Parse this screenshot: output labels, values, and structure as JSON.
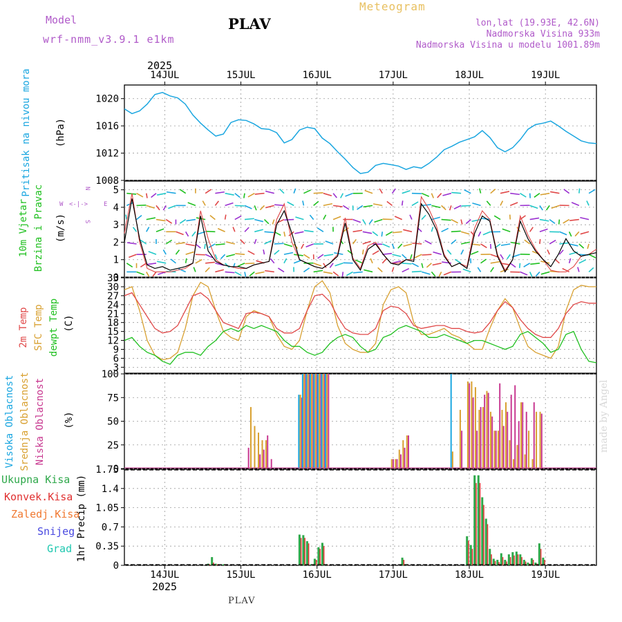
{
  "header": {
    "model_label": "Model",
    "model_name": "wrf-nmm_v3.9.1 e1km",
    "station": "PLAV",
    "meteogram": "Meteogram",
    "lonlat": "lon,lat (19.93E, 42.6N)",
    "alt": "Nadmorska Visina 933m",
    "alt_model": "Nadmorska Visina u modelu 1001.89m"
  },
  "footer": {
    "station": "PLAV",
    "credit": "made by Angel"
  },
  "colors": {
    "pressure": "#1aa6e0",
    "temp": "#e04848",
    "sfc": "#d8a030",
    "dew": "#20c020",
    "high": "#1aa6e0",
    "mid": "#d8a030",
    "low": "#c83890",
    "rain": "#2ea84a",
    "conv": "#e03030"
  },
  "chart_data": [
    {
      "type": "line",
      "panel": "pressure",
      "ylabel_1": "Pritisak na nivou mora",
      "ylabel_2": "(hPa)",
      "ylim": [
        1008,
        1022
      ],
      "yticks": [
        "1008",
        "1012",
        "1016",
        "1020"
      ],
      "top_year": "2025",
      "top_days": [
        "14JUL",
        "15JUL",
        "16JUL",
        "17JUL",
        "18JUL",
        "19JUL"
      ],
      "x": [
        0,
        0.1,
        0.2,
        0.3,
        0.4,
        0.5,
        0.6,
        0.7,
        0.8,
        0.9,
        1.0,
        1.1,
        1.2,
        1.3,
        1.4,
        1.5,
        1.6,
        1.7,
        1.8,
        1.9,
        2.0,
        2.1,
        2.2,
        2.3,
        2.4,
        2.5,
        2.6,
        2.7,
        2.8,
        2.9,
        3.0,
        3.1,
        3.2,
        3.3,
        3.4,
        3.5,
        3.6,
        3.7,
        3.8,
        3.9,
        4.0,
        4.1,
        4.2,
        4.3,
        4.4,
        4.5,
        4.6,
        4.7,
        4.8,
        4.9,
        5.0,
        5.1,
        5.2,
        5.3,
        5.4,
        5.5,
        5.6,
        5.7,
        5.8,
        5.9,
        6.0,
        6.1,
        6.2
      ],
      "values": [
        1018.5,
        1017.8,
        1018.2,
        1019.2,
        1020.6,
        1020.9,
        1020.4,
        1020.1,
        1019.2,
        1017.6,
        1016.4,
        1015.4,
        1014.5,
        1014.8,
        1016.5,
        1016.9,
        1016.8,
        1016.3,
        1015.6,
        1015.5,
        1015.0,
        1013.5,
        1014.0,
        1015.4,
        1015.8,
        1015.6,
        1014.2,
        1013.4,
        1012.2,
        1011.1,
        1009.9,
        1009.0,
        1009.2,
        1010.2,
        1010.5,
        1010.3,
        1010.1,
        1009.6,
        1010.0,
        1009.8,
        1010.5,
        1011.4,
        1012.5,
        1013.0,
        1013.6,
        1014.0,
        1014.4,
        1015.3,
        1014.3,
        1012.8,
        1012.2,
        1012.8,
        1014.0,
        1015.5,
        1016.2,
        1016.4,
        1016.7,
        1016.0,
        1015.2,
        1014.5,
        1013.8,
        1013.5,
        1013.4
      ]
    },
    {
      "type": "line",
      "panel": "wind",
      "ylabel_1": "10m Vjetar",
      "ylabel_2": "Brzina i Pravac",
      "ylabel_3": "(m/s)",
      "compass_n": "N",
      "compass_w": "W",
      "compass_e": "E",
      "compass_s": "S",
      "ylim": [
        0,
        5.5
      ],
      "yticks": [
        "0",
        "1",
        "2",
        "3",
        "4",
        "5"
      ],
      "x": [
        0,
        0.1,
        0.2,
        0.3,
        0.4,
        0.5,
        0.6,
        0.7,
        0.8,
        0.9,
        1.0,
        1.1,
        1.2,
        1.3,
        1.4,
        1.5,
        1.6,
        1.7,
        1.8,
        1.9,
        2.0,
        2.1,
        2.2,
        2.3,
        2.4,
        2.5,
        2.6,
        2.7,
        2.8,
        2.9,
        3.0,
        3.1,
        3.2,
        3.3,
        3.4,
        3.5,
        3.6,
        3.7,
        3.8,
        3.9,
        4.0,
        4.1,
        4.2,
        4.3,
        4.4,
        4.5,
        4.6,
        4.7,
        4.8,
        4.9,
        5.0,
        5.1,
        5.2,
        5.3,
        5.4,
        5.5,
        5.6,
        5.7,
        5.8,
        5.9,
        6.0,
        6.1,
        6.2
      ],
      "series": [
        {
          "name": "speed",
          "values": [
            2.0,
            4.5,
            2.2,
            0.7,
            0.5,
            0.6,
            0.4,
            0.5,
            0.6,
            0.8,
            3.5,
            1.5,
            0.9,
            0.7,
            0.6,
            0.6,
            0.5,
            0.7,
            0.8,
            0.9,
            3.0,
            3.8,
            2.5,
            1.0,
            0.8,
            0.6,
            0.5,
            0.8,
            1.2,
            3.1,
            1.0,
            0.4,
            1.6,
            1.9,
            1.3,
            0.8,
            0.7,
            1.0,
            0.9,
            4.2,
            3.6,
            2.7,
            1.2,
            0.6,
            0.8,
            0.5,
            2.5,
            3.5,
            3.2,
            1.2,
            0.3,
            1.0,
            3.2,
            2.2,
            1.5,
            1.0,
            0.6,
            1.3,
            2.2,
            1.5,
            1.2,
            1.3,
            1.4
          ]
        },
        {
          "name": "gust",
          "values": [
            2.5,
            4.8,
            2.0,
            0.5,
            0.3,
            0.3,
            0.3,
            0.4,
            0.5,
            0.8,
            3.8,
            2.2,
            1.0,
            0.7,
            0.6,
            0.5,
            0.5,
            0.7,
            0.8,
            0.9,
            3.3,
            4.2,
            2.0,
            1.0,
            0.8,
            0.6,
            0.5,
            0.8,
            1.3,
            3.4,
            1.1,
            0.5,
            1.8,
            2.0,
            1.3,
            0.8,
            0.8,
            1.0,
            1.0,
            4.6,
            3.9,
            2.9,
            1.3,
            0.6,
            0.8,
            0.6,
            2.8,
            3.8,
            3.3,
            1.3,
            0.4,
            1.0,
            3.5,
            2.4,
            1.6,
            1.0,
            0.4,
            0.3,
            0.3,
            0.6,
            1.2,
            1.3,
            1.6
          ]
        }
      ]
    },
    {
      "type": "line",
      "panel": "temperature",
      "ylabel_1": "2m Temp",
      "ylabel_2": "SFC Temp",
      "ylabel_3": "dewpt Temp",
      "ylabel_4": "(C)",
      "ylim": [
        1,
        33
      ],
      "yticks": [
        "3",
        "6",
        "9",
        "12",
        "15",
        "18",
        "21",
        "24",
        "27",
        "30",
        "33"
      ],
      "x": [
        0,
        0.1,
        0.2,
        0.3,
        0.4,
        0.5,
        0.6,
        0.7,
        0.8,
        0.9,
        1.0,
        1.1,
        1.2,
        1.3,
        1.4,
        1.5,
        1.6,
        1.7,
        1.8,
        1.9,
        2.0,
        2.1,
        2.2,
        2.3,
        2.4,
        2.5,
        2.6,
        2.7,
        2.8,
        2.9,
        3.0,
        3.1,
        3.2,
        3.3,
        3.4,
        3.5,
        3.6,
        3.7,
        3.8,
        3.9,
        4.0,
        4.1,
        4.2,
        4.3,
        4.4,
        4.5,
        4.6,
        4.7,
        4.8,
        4.9,
        5.0,
        5.1,
        5.2,
        5.3,
        5.4,
        5.5,
        5.6,
        5.7,
        5.8,
        5.9,
        6.0,
        6.1,
        6.2
      ],
      "series": [
        {
          "name": "2m",
          "values": [
            27,
            28,
            24,
            20,
            16,
            14.5,
            15,
            17,
            22,
            27,
            28,
            26,
            22,
            18,
            17,
            16,
            21,
            21.5,
            21,
            20,
            16,
            14.5,
            14.5,
            16,
            22,
            27,
            27.5,
            25,
            20,
            16,
            14.5,
            14,
            14,
            16,
            22,
            23.5,
            23,
            21,
            17,
            16,
            16.5,
            17,
            17,
            16,
            16,
            15,
            14.5,
            15,
            18,
            22,
            25,
            23,
            19,
            16,
            14,
            13,
            13,
            16,
            21,
            24,
            25,
            24.5,
            24.5
          ]
        },
        {
          "name": "sfc",
          "values": [
            29,
            30,
            22,
            12,
            7,
            5.5,
            6,
            8,
            16,
            27,
            31.5,
            30,
            22,
            15,
            13,
            12,
            20,
            22,
            21,
            20,
            14,
            10,
            9,
            12,
            22,
            30,
            32,
            28,
            17,
            11,
            9,
            8,
            8,
            11,
            24,
            29,
            30,
            28,
            18,
            14,
            14,
            15,
            16,
            14,
            13,
            11,
            9,
            9,
            16,
            22,
            26,
            23,
            16,
            10,
            8,
            7,
            6,
            10,
            22,
            29,
            30.5,
            30,
            30
          ]
        },
        {
          "name": "dew",
          "values": [
            12,
            13,
            10,
            8,
            7,
            5,
            4,
            7,
            8,
            8,
            7,
            10,
            12,
            15,
            16,
            15,
            17,
            16,
            17,
            16,
            15,
            12,
            10,
            10,
            8,
            7,
            8,
            11,
            13,
            14,
            13,
            10,
            8,
            9,
            13,
            14,
            16,
            17,
            16,
            15,
            13,
            13,
            14,
            13,
            12,
            11,
            12,
            12,
            11,
            10,
            9,
            10,
            14,
            15,
            13,
            11,
            8,
            9,
            14,
            15,
            9,
            5,
            4.5
          ]
        }
      ]
    },
    {
      "type": "bar",
      "panel": "clouds",
      "ylabel_1": "Visoka Oblacnost",
      "ylabel_2": "Srednja Oblacnost",
      "ylabel_3": "Niska Oblacnost",
      "ylabel_4": "(%)",
      "ylim": [
        0,
        100
      ],
      "yticks": [
        "0",
        "25",
        "50",
        "75",
        "100"
      ],
      "x": [
        1.6,
        1.65,
        1.7,
        1.75,
        1.8,
        1.85,
        1.9,
        2.3,
        2.35,
        2.4,
        2.45,
        2.5,
        2.55,
        2.6,
        2.65,
        3.5,
        3.55,
        3.6,
        3.65,
        3.7,
        4.3,
        4.35,
        4.4,
        4.5,
        4.55,
        4.6,
        4.65,
        4.7,
        4.75,
        4.8,
        4.85,
        4.9,
        4.95,
        5.0,
        5.05,
        5.1,
        5.15,
        5.2,
        5.25,
        5.3,
        5.35,
        5.4,
        5.45,
        5.5
      ],
      "series": [
        {
          "name": "visoka",
          "values": [
            0,
            0,
            0,
            0,
            0,
            0,
            0,
            78,
            100,
            100,
            100,
            100,
            100,
            100,
            100,
            0,
            0,
            0,
            0,
            0,
            100,
            0,
            0,
            0,
            0,
            0,
            0,
            0,
            0,
            0,
            0,
            0,
            0,
            0,
            0,
            0,
            0,
            0,
            0,
            0,
            0,
            0,
            0,
            0
          ]
        },
        {
          "name": "srednja",
          "values": [
            0,
            65,
            45,
            38,
            30,
            30,
            0,
            78,
            100,
            100,
            100,
            100,
            100,
            100,
            100,
            10,
            10,
            20,
            30,
            35,
            18,
            0,
            62,
            92,
            92,
            86,
            62,
            65,
            82,
            60,
            40,
            40,
            62,
            70,
            30,
            10,
            25,
            70,
            15,
            40,
            10,
            60,
            60,
            0
          ]
        },
        {
          "name": "niska",
          "values": [
            22,
            0,
            0,
            15,
            20,
            35,
            10,
            75,
            100,
            100,
            100,
            100,
            100,
            100,
            100,
            10,
            10,
            15,
            22,
            35,
            0,
            0,
            40,
            90,
            75,
            40,
            65,
            78,
            80,
            55,
            40,
            90,
            45,
            60,
            78,
            88,
            50,
            70,
            60,
            0,
            70,
            0,
            58,
            0
          ]
        }
      ]
    },
    {
      "type": "bar",
      "panel": "precip",
      "legend_1": "Ukupna Kisa",
      "legend_2": "Konvek.Kisa",
      "legend_3": "Zaledj.Kisa",
      "legend_4": "Snijeg",
      "legend_5": "Grad",
      "ylabel": "1hr Precip (mm)",
      "ylim": [
        0,
        1.75
      ],
      "yticks": [
        "0",
        "0.35",
        "0.7",
        "1.05",
        "1.4",
        "1.75"
      ],
      "bottom_year": "2025",
      "bottom_days": [
        "14JUL",
        "15JUL",
        "16JUL",
        "17JUL",
        "18JUL",
        "19JUL"
      ],
      "x": [
        1.1,
        1.15,
        1.2,
        1.3,
        2.3,
        2.35,
        2.4,
        2.45,
        2.5,
        2.55,
        2.6,
        2.65,
        3.65,
        3.7,
        4.5,
        4.55,
        4.6,
        4.65,
        4.7,
        4.75,
        4.8,
        4.85,
        4.9,
        4.95,
        5.0,
        5.05,
        5.1,
        5.15,
        5.2,
        5.25,
        5.3,
        5.35,
        5.4,
        5.45,
        5.5
      ],
      "series": [
        {
          "name": "ukupna",
          "values": [
            0.03,
            0.15,
            0.03,
            0.02,
            0.56,
            0.55,
            0.44,
            0.02,
            0.12,
            0.33,
            0.41,
            0.02,
            0.14,
            0.02,
            0.53,
            0.37,
            1.64,
            1.64,
            1.24,
            0.85,
            0.3,
            0.12,
            0.1,
            0.22,
            0.1,
            0.2,
            0.24,
            0.25,
            0.2,
            0.1,
            0.05,
            0.13,
            0.05,
            0.4,
            0.14
          ]
        },
        {
          "name": "konvek",
          "values": [
            0.02,
            0.05,
            0.02,
            0.01,
            0.5,
            0.5,
            0.4,
            0.01,
            0.1,
            0.3,
            0.35,
            0.01,
            0.1,
            0.01,
            0.45,
            0.3,
            1.5,
            1.5,
            1.1,
            0.75,
            0.2,
            0.08,
            0.06,
            0.15,
            0.07,
            0.15,
            0.18,
            0.2,
            0.15,
            0.07,
            0.03,
            0.1,
            0.03,
            0.3,
            0.1
          ]
        }
      ]
    }
  ]
}
